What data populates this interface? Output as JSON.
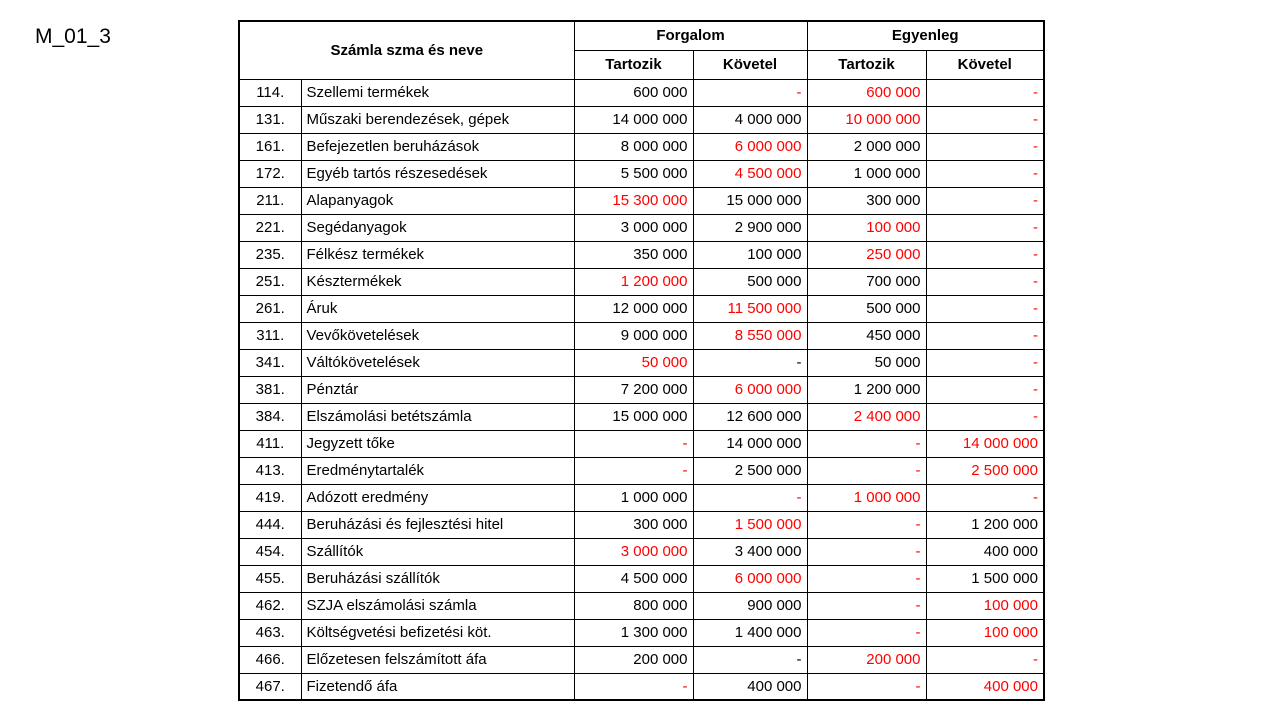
{
  "page_title": "M_01_3",
  "colors": {
    "value_red": "#ff0000",
    "text_black": "#000000"
  },
  "table": {
    "header": {
      "account_name": "Számla szma és neve",
      "forgalom": "Forgalom",
      "egyenleg": "Egyenleg",
      "tartozik": "Tartozik",
      "kovetel": "Követel"
    },
    "rows": [
      {
        "num": "114.",
        "name": "Szellemi termékek",
        "cells": [
          [
            "600 000",
            "black"
          ],
          [
            "-",
            "red"
          ],
          [
            "600 000",
            "red"
          ],
          [
            "-",
            "red"
          ]
        ]
      },
      {
        "num": "131.",
        "name": "Műszaki berendezések, gépek",
        "cells": [
          [
            "14 000 000",
            "black"
          ],
          [
            "4 000 000",
            "black"
          ],
          [
            "10 000 000",
            "red"
          ],
          [
            "-",
            "red"
          ]
        ]
      },
      {
        "num": "161.",
        "name": "Befejezetlen beruházások",
        "cells": [
          [
            "8 000 000",
            "black"
          ],
          [
            "6 000 000",
            "red"
          ],
          [
            "2 000 000",
            "black"
          ],
          [
            "-",
            "red"
          ]
        ]
      },
      {
        "num": "172.",
        "name": "Egyéb tartós részesedések",
        "cells": [
          [
            "5 500 000",
            "black"
          ],
          [
            "4 500 000",
            "red"
          ],
          [
            "1 000 000",
            "black"
          ],
          [
            "-",
            "red"
          ]
        ]
      },
      {
        "num": "211.",
        "name": "Alapanyagok",
        "cells": [
          [
            "15 300 000",
            "red"
          ],
          [
            "15 000 000",
            "black"
          ],
          [
            "300 000",
            "black"
          ],
          [
            "-",
            "red"
          ]
        ]
      },
      {
        "num": "221.",
        "name": "Segédanyagok",
        "cells": [
          [
            "3 000 000",
            "black"
          ],
          [
            "2 900 000",
            "black"
          ],
          [
            "100 000",
            "red"
          ],
          [
            "-",
            "red"
          ]
        ]
      },
      {
        "num": "235.",
        "name": "Félkész termékek",
        "cells": [
          [
            "350 000",
            "black"
          ],
          [
            "100 000",
            "black"
          ],
          [
            "250 000",
            "red"
          ],
          [
            "-",
            "red"
          ]
        ]
      },
      {
        "num": "251.",
        "name": "Késztermékek",
        "cells": [
          [
            "1 200 000",
            "red"
          ],
          [
            "500 000",
            "black"
          ],
          [
            "700 000",
            "black"
          ],
          [
            "-",
            "red"
          ]
        ]
      },
      {
        "num": "261.",
        "name": "Áruk",
        "cells": [
          [
            "12 000 000",
            "black"
          ],
          [
            "11 500 000",
            "red"
          ],
          [
            "500 000",
            "black"
          ],
          [
            "-",
            "red"
          ]
        ]
      },
      {
        "num": "311.",
        "name": "Vevőkövetelések",
        "cells": [
          [
            "9 000 000",
            "black"
          ],
          [
            "8 550 000",
            "red"
          ],
          [
            "450 000",
            "black"
          ],
          [
            "-",
            "red"
          ]
        ]
      },
      {
        "num": "341.",
        "name": "Váltókövetelések",
        "cells": [
          [
            "50 000",
            "red"
          ],
          [
            "-",
            "black"
          ],
          [
            "50 000",
            "black"
          ],
          [
            "-",
            "red"
          ]
        ]
      },
      {
        "num": "381.",
        "name": "Pénztár",
        "cells": [
          [
            "7 200 000",
            "black"
          ],
          [
            "6 000 000",
            "red"
          ],
          [
            "1 200 000",
            "black"
          ],
          [
            "-",
            "red"
          ]
        ]
      },
      {
        "num": "384.",
        "name": "Elszámolási betétszámla",
        "cells": [
          [
            "15 000 000",
            "black"
          ],
          [
            "12 600 000",
            "black"
          ],
          [
            "2 400 000",
            "red"
          ],
          [
            "-",
            "red"
          ]
        ]
      },
      {
        "num": "411.",
        "name": "Jegyzett tőke",
        "cells": [
          [
            "-",
            "red"
          ],
          [
            "14 000 000",
            "black"
          ],
          [
            "-",
            "red"
          ],
          [
            "14 000 000",
            "red"
          ]
        ]
      },
      {
        "num": "413.",
        "name": "Eredménytartalék",
        "cells": [
          [
            "-",
            "red"
          ],
          [
            "2 500 000",
            "black"
          ],
          [
            "-",
            "red"
          ],
          [
            "2 500 000",
            "red"
          ]
        ]
      },
      {
        "num": "419.",
        "name": "Adózott eredmény",
        "cells": [
          [
            "1 000 000",
            "black"
          ],
          [
            "-",
            "red"
          ],
          [
            "1 000 000",
            "red"
          ],
          [
            "-",
            "red"
          ]
        ]
      },
      {
        "num": "444.",
        "name": "Beruházási és fejlesztési hitel",
        "cells": [
          [
            "300 000",
            "black"
          ],
          [
            "1 500 000",
            "red"
          ],
          [
            "-",
            "red"
          ],
          [
            "1 200 000",
            "black"
          ]
        ]
      },
      {
        "num": "454.",
        "name": "Szállítók",
        "cells": [
          [
            "3 000 000",
            "red"
          ],
          [
            "3 400 000",
            "black"
          ],
          [
            "-",
            "red"
          ],
          [
            "400 000",
            "black"
          ]
        ]
      },
      {
        "num": "455.",
        "name": "Beruházási szállítók",
        "cells": [
          [
            "4 500 000",
            "black"
          ],
          [
            "6 000 000",
            "red"
          ],
          [
            "-",
            "red"
          ],
          [
            "1 500 000",
            "black"
          ]
        ]
      },
      {
        "num": "462.",
        "name": "SZJA elszámolási számla",
        "cells": [
          [
            "800 000",
            "black"
          ],
          [
            "900 000",
            "black"
          ],
          [
            "-",
            "red"
          ],
          [
            "100 000",
            "red"
          ]
        ]
      },
      {
        "num": "463.",
        "name": "Költségvetési befizetési köt.",
        "cells": [
          [
            "1 300 000",
            "black"
          ],
          [
            "1 400 000",
            "black"
          ],
          [
            "-",
            "red"
          ],
          [
            "100 000",
            "red"
          ]
        ]
      },
      {
        "num": "466.",
        "name": "Előzetesen felszámított áfa",
        "cells": [
          [
            "200 000",
            "black"
          ],
          [
            "-",
            "black"
          ],
          [
            "200 000",
            "red"
          ],
          [
            "-",
            "red"
          ]
        ]
      },
      {
        "num": "467.",
        "name": "Fizetendő áfa",
        "cells": [
          [
            "-",
            "red"
          ],
          [
            "400 000",
            "black"
          ],
          [
            "-",
            "red"
          ],
          [
            "400 000",
            "red"
          ]
        ]
      }
    ]
  }
}
